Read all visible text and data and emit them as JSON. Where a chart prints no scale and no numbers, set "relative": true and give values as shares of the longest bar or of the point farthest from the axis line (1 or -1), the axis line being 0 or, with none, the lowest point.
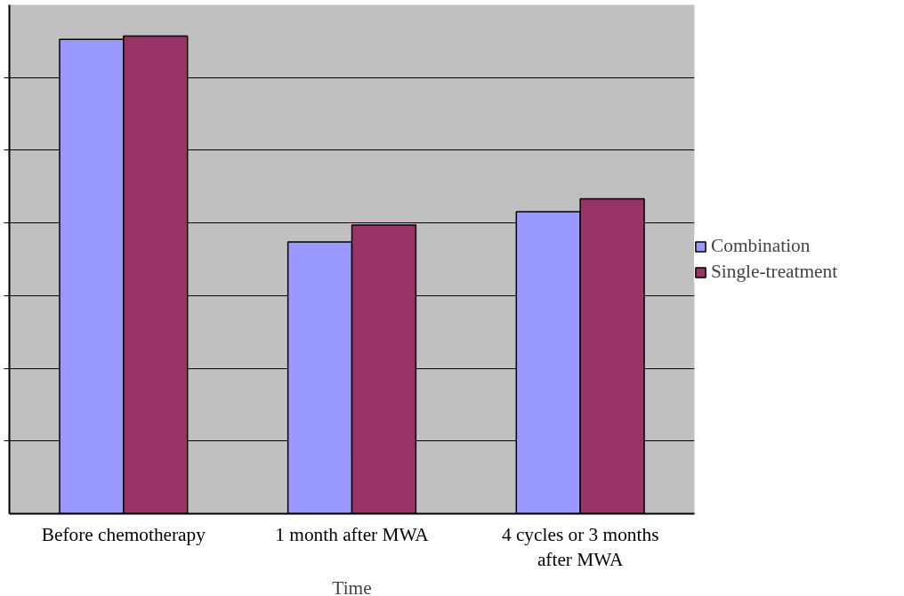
{
  "chart_data": {
    "type": "bar",
    "relative": true,
    "xlabel": "Time",
    "categories": [
      "Before chemotherapy",
      "1 month after MWA",
      "4 cycles or 3 months after MWA"
    ],
    "series": [
      {
        "name": "Combination",
        "color": "#9999ff",
        "values": [
          0.993,
          0.569,
          0.632
        ]
      },
      {
        "name": "Single-treatment",
        "color": "#993366",
        "values": [
          1.0,
          0.604,
          0.659
        ]
      }
    ],
    "grid": "y",
    "legend": "right"
  }
}
